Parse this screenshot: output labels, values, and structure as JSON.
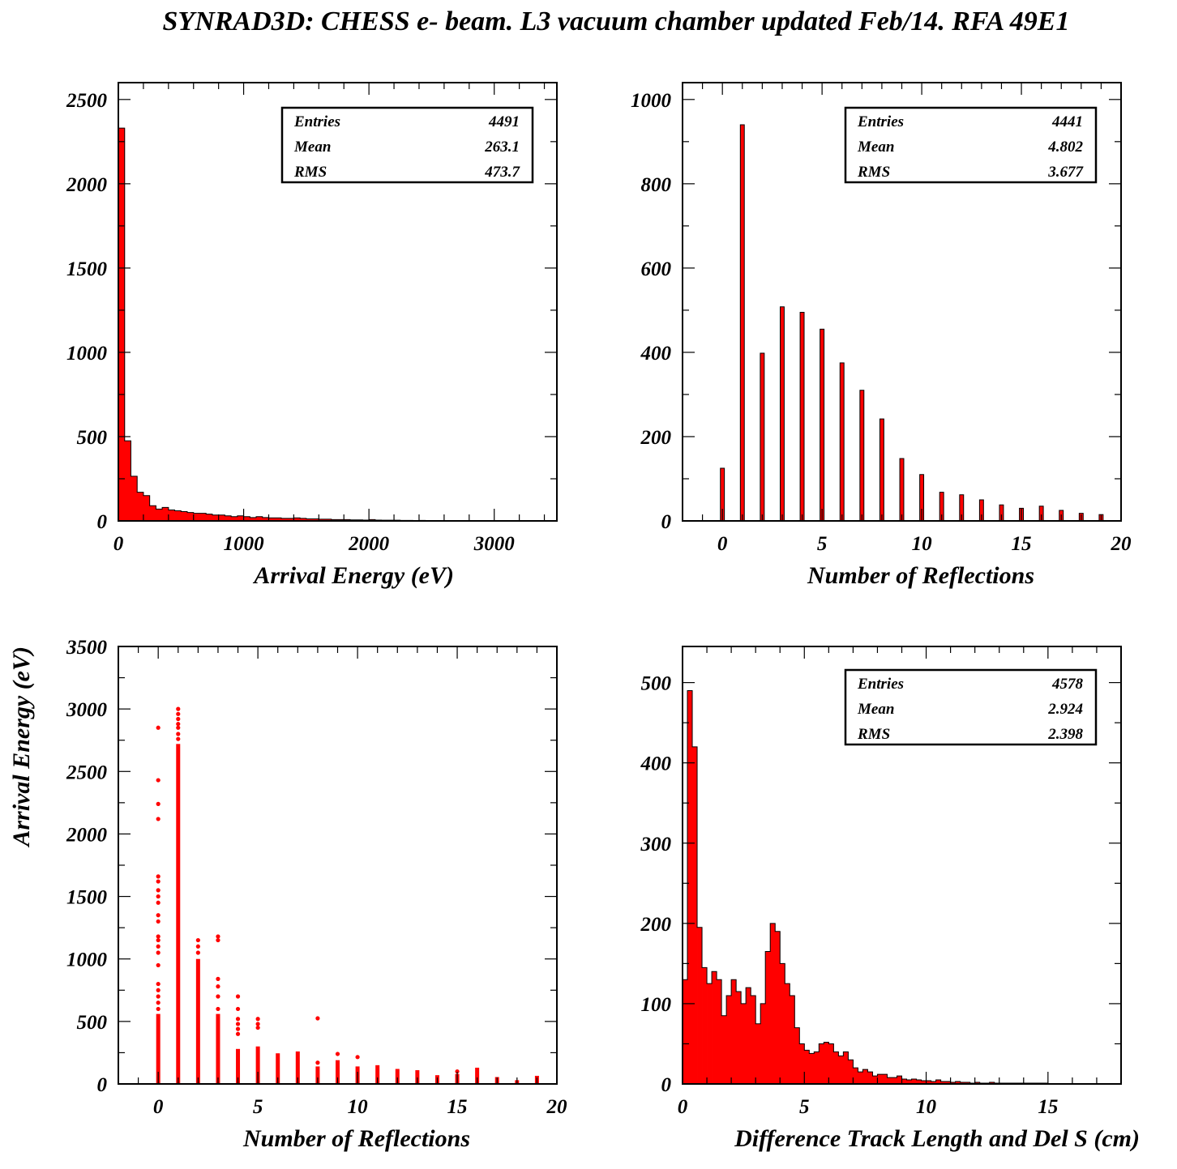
{
  "title": "SYNRAD3D: CHESS e- beam. L3 vacuum chamber updated Feb/14. RFA 49E1",
  "colors": {
    "fill": "#ff0000",
    "edge": "#000000",
    "frame": "#000000"
  },
  "chart_data": [
    {
      "id": "energy",
      "type": "bar",
      "title": "",
      "xlabel": "Arrival Energy (eV)",
      "ylabel": "",
      "xlim": [
        0,
        3500
      ],
      "ylim": [
        0,
        2600
      ],
      "xticks": [
        0,
        1000,
        2000,
        3000
      ],
      "xtick_labels": [
        "0",
        "1000",
        "2000",
        "3000"
      ],
      "yticks": [
        0,
        500,
        1000,
        1500,
        2000,
        2500
      ],
      "ytick_labels": [
        "0",
        "500",
        "1000",
        "1500",
        "2000",
        "2500"
      ],
      "bin_width": 50,
      "bin_start": 0,
      "values": [
        2330,
        475,
        265,
        170,
        150,
        90,
        70,
        80,
        65,
        60,
        55,
        50,
        45,
        45,
        40,
        35,
        35,
        30,
        25,
        30,
        25,
        20,
        25,
        20,
        18,
        18,
        15,
        15,
        18,
        15,
        12,
        12,
        10,
        10,
        8,
        8,
        8,
        6,
        6,
        5,
        8,
        5,
        4,
        4,
        4,
        3,
        3,
        2,
        3,
        2,
        2,
        1,
        1,
        1,
        1,
        1,
        1,
        1,
        0,
        1,
        0,
        0,
        0,
        0,
        0,
        0,
        0,
        0,
        0,
        0
      ],
      "stats": {
        "entries_label": "Entries",
        "entries": "4491",
        "mean_label": "Mean",
        "mean": "263.1",
        "rms_label": "RMS",
        "rms": "473.7"
      }
    },
    {
      "id": "reflections",
      "type": "bar",
      "title": "",
      "xlabel": "Number of Reflections",
      "ylabel": "",
      "xlim": [
        -2,
        20
      ],
      "ylim": [
        0,
        1040
      ],
      "xticks": [
        0,
        5,
        10,
        15,
        20
      ],
      "xtick_labels": [
        "0",
        "5",
        "10",
        "15",
        "20"
      ],
      "yticks": [
        0,
        200,
        400,
        600,
        800,
        1000
      ],
      "ytick_labels": [
        "0",
        "200",
        "400",
        "600",
        "800",
        "1000"
      ],
      "bin_width": 0.2,
      "categories": [
        0,
        1,
        2,
        3,
        4,
        5,
        6,
        7,
        8,
        9,
        10,
        11,
        12,
        13,
        14,
        15,
        16,
        17,
        18,
        19
      ],
      "values": [
        125,
        940,
        398,
        508,
        495,
        455,
        375,
        310,
        242,
        148,
        110,
        68,
        62,
        50,
        38,
        30,
        35,
        25,
        18,
        15
      ],
      "stats": {
        "entries_label": "Entries",
        "entries": "4441",
        "mean_label": "Mean",
        "mean": "4.802",
        "rms_label": "RMS",
        "rms": "3.677"
      }
    },
    {
      "id": "scatter",
      "type": "scatter",
      "title": "",
      "xlabel": "Number of Reflections",
      "ylabel": "Arrival Energy (eV)",
      "xlim": [
        -2,
        20
      ],
      "ylim": [
        0,
        3500
      ],
      "xticks": [
        0,
        5,
        10,
        15,
        20
      ],
      "xtick_labels": [
        "0",
        "5",
        "10",
        "15",
        "20"
      ],
      "yticks": [
        0,
        500,
        1000,
        1500,
        2000,
        2500,
        3000,
        3500
      ],
      "ytick_labels": [
        "0",
        "500",
        "1000",
        "1500",
        "2000",
        "2500",
        "3000",
        "3500"
      ],
      "columns": [
        {
          "x": 0,
          "dense_to": 560,
          "points": [
            600,
            650,
            700,
            750,
            800,
            950,
            1050,
            1100,
            1150,
            1180,
            1300,
            1350,
            1450,
            1500,
            1550,
            1620,
            1660,
            2120,
            2240,
            2430,
            2850
          ]
        },
        {
          "x": 1,
          "dense_to": 2720,
          "points": [
            2760,
            2800,
            2850,
            2880,
            2920,
            2960,
            3000
          ]
        },
        {
          "x": 2,
          "dense_to": 1000,
          "points": [
            1050,
            1100,
            1150
          ]
        },
        {
          "x": 3,
          "dense_to": 560,
          "points": [
            600,
            700,
            780,
            840,
            1150,
            1180
          ]
        },
        {
          "x": 4,
          "dense_to": 280,
          "points": [
            400,
            440,
            480,
            520,
            600,
            700
          ]
        },
        {
          "x": 5,
          "dense_to": 300,
          "points": [
            450,
            480,
            520
          ]
        },
        {
          "x": 6,
          "dense_to": 245,
          "points": []
        },
        {
          "x": 7,
          "dense_to": 260,
          "points": []
        },
        {
          "x": 8,
          "dense_to": 140,
          "points": [
            170,
            525
          ]
        },
        {
          "x": 9,
          "dense_to": 190,
          "points": [
            240
          ]
        },
        {
          "x": 10,
          "dense_to": 140,
          "points": [
            215
          ]
        },
        {
          "x": 11,
          "dense_to": 150,
          "points": []
        },
        {
          "x": 12,
          "dense_to": 120,
          "points": []
        },
        {
          "x": 13,
          "dense_to": 110,
          "points": []
        },
        {
          "x": 14,
          "dense_to": 70,
          "points": []
        },
        {
          "x": 15,
          "dense_to": 80,
          "points": [
            100
          ]
        },
        {
          "x": 16,
          "dense_to": 130,
          "points": []
        },
        {
          "x": 17,
          "dense_to": 55,
          "points": []
        },
        {
          "x": 18,
          "dense_to": 30,
          "points": []
        },
        {
          "x": 19,
          "dense_to": 65,
          "points": []
        }
      ]
    },
    {
      "id": "tracklen",
      "type": "bar",
      "title": "",
      "xlabel": "Difference Track Length and Del S (cm)",
      "ylabel": "",
      "xlim": [
        0,
        18
      ],
      "ylim": [
        0,
        545
      ],
      "xticks": [
        0,
        5,
        10,
        15
      ],
      "xtick_labels": [
        "0",
        "5",
        "10",
        "15"
      ],
      "yticks": [
        0,
        100,
        200,
        300,
        400,
        500
      ],
      "ytick_labels": [
        "0",
        "100",
        "200",
        "300",
        "400",
        "500"
      ],
      "bin_width": 0.2,
      "bin_start": 0,
      "values": [
        130,
        490,
        420,
        195,
        145,
        125,
        140,
        130,
        85,
        110,
        130,
        115,
        100,
        120,
        110,
        75,
        100,
        165,
        200,
        190,
        150,
        125,
        110,
        70,
        50,
        42,
        38,
        40,
        50,
        52,
        50,
        40,
        35,
        40,
        30,
        20,
        15,
        18,
        15,
        10,
        12,
        12,
        8,
        8,
        10,
        6,
        5,
        6,
        5,
        4,
        4,
        3,
        5,
        3,
        3,
        2,
        3,
        2,
        2,
        1,
        2,
        1,
        1,
        2,
        1,
        1,
        1,
        1,
        1,
        1,
        1,
        1,
        1,
        1,
        1,
        0,
        0,
        0,
        0,
        0,
        0,
        0,
        0,
        0,
        0,
        0,
        0,
        0,
        0,
        0
      ],
      "stats": {
        "entries_label": "Entries",
        "entries": "4578",
        "mean_label": "Mean",
        "mean": "2.924",
        "rms_label": "RMS",
        "rms": "2.398"
      }
    }
  ]
}
